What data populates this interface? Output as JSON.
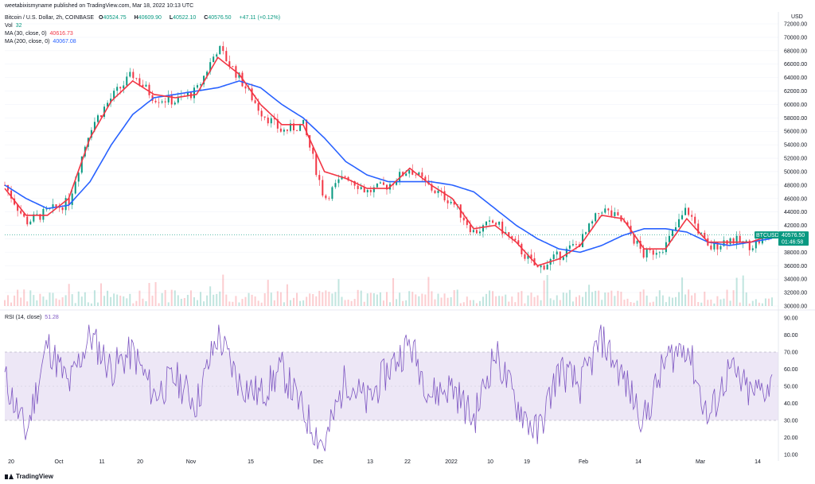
{
  "header": {
    "byline": "weetabixismyname published on TradingView.com, Mar 18, 2022 10:13 UTC",
    "symbol_desc": "Bitcoin / U.S. Dollar, 2h, COINBASE",
    "ohlc": {
      "o_label": "O",
      "o": "40524.75",
      "h_label": "H",
      "h": "40609.90",
      "l_label": "L",
      "l": "40522.10",
      "c_label": "C",
      "c": "40576.50",
      "change": "+47.11 (+0.12%)"
    },
    "vol_label": "Vol",
    "vol": "32",
    "ma30_label": "MA (30, close, 0)",
    "ma30": "40616.73",
    "ma200_label": "MA (200, close, 0)",
    "ma200": "40067.08",
    "rsi_label": "RSI (14, close)",
    "rsi": "51.28"
  },
  "price_badge": {
    "symbol": "BTCUSD",
    "price": "40576.50",
    "timer": "01:46:58"
  },
  "footer": {
    "brand": "TradingView"
  },
  "colors": {
    "up": "#089981",
    "down": "#f23645",
    "ma30": "#f23645",
    "ma200": "#2962ff",
    "rsi": "#7e57c2",
    "rsi_band": "#ede7f6"
  },
  "chart_data": {
    "type": "line",
    "currency": "USD",
    "price_axis_ticks": [
      "30000.00",
      "32000.00",
      "34000.00",
      "36000.00",
      "38000.00",
      "40000.00",
      "42000.00",
      "44000.00",
      "46000.00",
      "48000.00",
      "50000.00",
      "52000.00",
      "54000.00",
      "56000.00",
      "58000.00",
      "60000.00",
      "62000.00",
      "64000.00",
      "66000.00",
      "68000.00",
      "70000.00",
      "72000.00"
    ],
    "rsi_axis_ticks": [
      "10.00",
      "20.00",
      "30.00",
      "40.00",
      "50.00",
      "60.00",
      "70.00",
      "80.00",
      "90.00"
    ],
    "time_axis_ticks": [
      "20",
      "Oct",
      "11",
      "20",
      "Nov",
      "15",
      "Dec",
      "13",
      "22",
      "2022",
      "10",
      "19",
      "Feb",
      "14",
      "Mar",
      "14"
    ],
    "ylim": [
      30000,
      72000
    ],
    "rsi_ylim": [
      10,
      90
    ],
    "rsi_bands": [
      30,
      70
    ],
    "series": [
      {
        "name": "BTCUSD",
        "x": [
          0,
          5,
          10,
          15,
          20,
          25,
          30,
          35,
          40,
          45,
          50,
          55,
          60,
          65,
          70,
          75,
          80,
          85,
          90,
          95,
          100,
          105,
          110,
          115,
          120,
          125,
          130,
          135,
          140,
          145,
          150,
          155,
          160,
          165,
          170,
          175,
          180
        ],
        "values": [
          48000,
          42500,
          44000,
          45500,
          56500,
          61000,
          64500,
          61000,
          60500,
          62000,
          68500,
          64000,
          59000,
          56000,
          57000,
          46000,
          49500,
          47000,
          48000,
          50500,
          47500,
          45500,
          41000,
          42500,
          39000,
          35500,
          37500,
          39500,
          44500,
          42500,
          37500,
          39000,
          44500,
          38500,
          40000,
          39000,
          40576.5
        ]
      },
      {
        "name": "MA (30, close, 0)",
        "x": [
          0,
          5,
          10,
          15,
          20,
          25,
          30,
          35,
          40,
          45,
          50,
          55,
          60,
          65,
          70,
          75,
          80,
          85,
          90,
          95,
          100,
          105,
          110,
          115,
          120,
          125,
          130,
          135,
          140,
          145,
          150,
          155,
          160,
          165,
          170,
          175,
          180
        ],
        "values": [
          47500,
          43500,
          43500,
          46000,
          55000,
          60500,
          63500,
          61500,
          61000,
          61500,
          67000,
          64500,
          60000,
          57000,
          57000,
          50000,
          49000,
          47500,
          47500,
          50500,
          48000,
          46000,
          41500,
          42000,
          39500,
          36000,
          37000,
          39000,
          43500,
          43000,
          38500,
          38500,
          43000,
          39500,
          39500,
          39500,
          40616.73
        ]
      },
      {
        "name": "MA (200, close, 0)",
        "x": [
          0,
          5,
          10,
          15,
          20,
          25,
          30,
          35,
          40,
          45,
          50,
          55,
          60,
          65,
          70,
          75,
          80,
          85,
          90,
          95,
          100,
          105,
          110,
          115,
          120,
          125,
          130,
          135,
          140,
          145,
          150,
          155,
          160,
          165,
          170,
          175,
          180
        ],
        "values": [
          48000,
          46000,
          44500,
          45000,
          48500,
          54000,
          58500,
          61000,
          61500,
          62000,
          62500,
          63500,
          62500,
          60000,
          58000,
          55000,
          51500,
          49500,
          48500,
          48500,
          48500,
          48000,
          47000,
          44500,
          42000,
          40000,
          38500,
          38000,
          39000,
          40500,
          41500,
          41500,
          41000,
          39500,
          39000,
          39500,
          40067.08
        ]
      },
      {
        "name": "RSI (14, close)",
        "x": [
          0,
          5,
          10,
          15,
          20,
          25,
          30,
          35,
          40,
          45,
          50,
          55,
          60,
          65,
          70,
          75,
          80,
          85,
          90,
          95,
          100,
          105,
          110,
          115,
          120,
          125,
          130,
          135,
          140,
          145,
          150,
          155,
          160,
          165,
          170,
          175,
          180
        ],
        "values": [
          55,
          22,
          75,
          50,
          80,
          60,
          70,
          45,
          55,
          40,
          80,
          52,
          45,
          60,
          35,
          15,
          55,
          40,
          60,
          75,
          45,
          50,
          30,
          70,
          40,
          22,
          60,
          50,
          78,
          55,
          30,
          65,
          75,
          30,
          60,
          45,
          51.28
        ]
      }
    ],
    "last_price": 40576.5
  }
}
